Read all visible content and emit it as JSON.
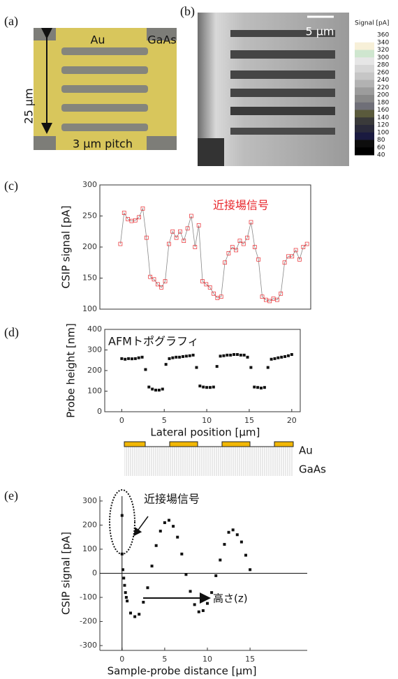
{
  "panel_labels": [
    "(a)",
    "(b)",
    "(c)",
    "(d)",
    "(e)"
  ],
  "image_a": {
    "au": "Au",
    "gaas": "GaAs",
    "height": "25 μm",
    "pitch": "3 μm pitch"
  },
  "image_b": {
    "scale": "5 μm",
    "colorbar_title": "Signal [pA]",
    "colorbar_ticks": [
      360,
      340,
      320,
      300,
      280,
      260,
      240,
      220,
      200,
      180,
      160,
      140,
      120,
      100,
      80,
      60,
      40
    ],
    "colorbar_colors": [
      "#ffffff",
      "#f7f0d8",
      "#cfe6cf",
      "#e6e6e6",
      "#d6d6d6",
      "#c6c6c6",
      "#b2b2b2",
      "#9c9c9c",
      "#888888",
      "#6f6f78",
      "#5a5a3c",
      "#3a3a3a",
      "#2a2a3a",
      "#1a1a40",
      "#0d0d0d",
      "#000000"
    ]
  },
  "schematic": {
    "au": "Au",
    "gaas": "GaAs"
  },
  "chart_data": [
    {
      "type": "scatter",
      "ylabel": "CSIP signal [pA]",
      "annotation": "近接場信号",
      "annotation_color": "#e8262b",
      "ylim": [
        100,
        300
      ],
      "yticks": [
        100,
        150,
        200,
        250,
        300
      ],
      "xlim": [
        -2.2,
        20.4
      ],
      "marker": "open-square",
      "line": true,
      "line_color": "#888888",
      "x": [
        0,
        0.4,
        0.8,
        1.2,
        1.6,
        2.0,
        2.4,
        2.8,
        3.2,
        3.6,
        4.0,
        4.4,
        4.8,
        5.2,
        5.6,
        6.0,
        6.4,
        6.8,
        7.2,
        7.6,
        8.0,
        8.4,
        8.8,
        9.2,
        9.6,
        10.0,
        10.4,
        10.8,
        11.2,
        11.6,
        12.0,
        12.4,
        12.8,
        13.2,
        13.6,
        14.0,
        14.4,
        14.8,
        15.2,
        15.6,
        16.0,
        16.4,
        16.8,
        17.2,
        17.6,
        18.0,
        18.4,
        18.8,
        19.2,
        19.6,
        20.0
      ],
      "series": [
        {
          "color": "#e8262b",
          "values": [
            205,
            255,
            245,
            242,
            243,
            248,
            262,
            215,
            152,
            148,
            140,
            135,
            145,
            205,
            225,
            215,
            225,
            210,
            230,
            250,
            200,
            235,
            145,
            140,
            135,
            125,
            118,
            120,
            175,
            190,
            200,
            195,
            210,
            205,
            215,
            240,
            200,
            180,
            120,
            115,
            113,
            117,
            115,
            125,
            175,
            185,
            185,
            195,
            180,
            200,
            205
          ]
        }
      ]
    },
    {
      "type": "scatter",
      "ylabel": "Probe height [nm]",
      "xlabel": "Lateral position [μm]",
      "annotation": "AFMトポグラフィ",
      "annotation_color": "#111111",
      "ylim": [
        0,
        400
      ],
      "yticks": [
        0,
        100,
        200,
        300,
        400
      ],
      "xlim": [
        -2,
        21
      ],
      "xticks": [
        0,
        5,
        10,
        15,
        20
      ],
      "marker": "filled-square",
      "line": false,
      "x": [
        0,
        0.4,
        0.8,
        1.2,
        1.6,
        2.0,
        2.4,
        2.8,
        3.2,
        3.6,
        4.0,
        4.4,
        4.8,
        5.2,
        5.6,
        6.0,
        6.4,
        6.8,
        7.2,
        7.6,
        8.0,
        8.4,
        8.8,
        9.2,
        9.6,
        10.0,
        10.4,
        10.8,
        11.2,
        11.6,
        12.0,
        12.4,
        12.8,
        13.2,
        13.6,
        14.0,
        14.4,
        14.8,
        15.2,
        15.6,
        16.0,
        16.4,
        16.8,
        17.2,
        17.6,
        18.0,
        18.4,
        18.8,
        19.2,
        19.6,
        20.0
      ],
      "series": [
        {
          "color": "#111111",
          "values": [
            258,
            255,
            258,
            257,
            258,
            262,
            265,
            205,
            120,
            110,
            105,
            105,
            110,
            230,
            258,
            262,
            265,
            265,
            268,
            270,
            272,
            275,
            215,
            125,
            120,
            118,
            118,
            120,
            220,
            270,
            272,
            275,
            275,
            278,
            278,
            275,
            275,
            265,
            215,
            120,
            118,
            115,
            118,
            215,
            255,
            258,
            262,
            265,
            268,
            272,
            278
          ]
        }
      ]
    },
    {
      "type": "scatter",
      "ylabel": "CSIP signal [pA]",
      "xlabel": "Sample-probe distance [μm]",
      "annotation": "近接場信号",
      "annotation_color": "#111111",
      "annotation2": "高さ(z)",
      "ylim": [
        -320,
        320
      ],
      "yticks": [
        -300,
        -200,
        -100,
        0,
        100,
        200,
        300
      ],
      "xlim": [
        -2.6,
        21.7
      ],
      "xticks": [
        0,
        5,
        10,
        15
      ],
      "marker": "filled-square",
      "line": false,
      "zero_axes": true,
      "x": [
        0,
        0,
        0.1,
        0.2,
        0.3,
        0.4,
        0.5,
        0.6,
        1,
        1.5,
        2,
        2.5,
        3,
        3.5,
        4,
        4.5,
        5,
        5.5,
        6,
        6.5,
        7,
        7.5,
        8,
        8.5,
        9,
        9.5,
        10,
        10.5,
        11,
        11.5,
        12,
        12.5,
        13,
        13.5,
        14,
        14.5,
        15
      ],
      "series": [
        {
          "color": "#111111",
          "values": [
            240,
            80,
            15,
            -20,
            -50,
            -80,
            -100,
            -115,
            -165,
            -180,
            -170,
            -120,
            -60,
            30,
            115,
            175,
            210,
            220,
            195,
            150,
            80,
            -5,
            -75,
            -130,
            -160,
            -155,
            -125,
            -80,
            -10,
            55,
            120,
            170,
            180,
            160,
            130,
            75,
            15
          ]
        }
      ]
    }
  ]
}
